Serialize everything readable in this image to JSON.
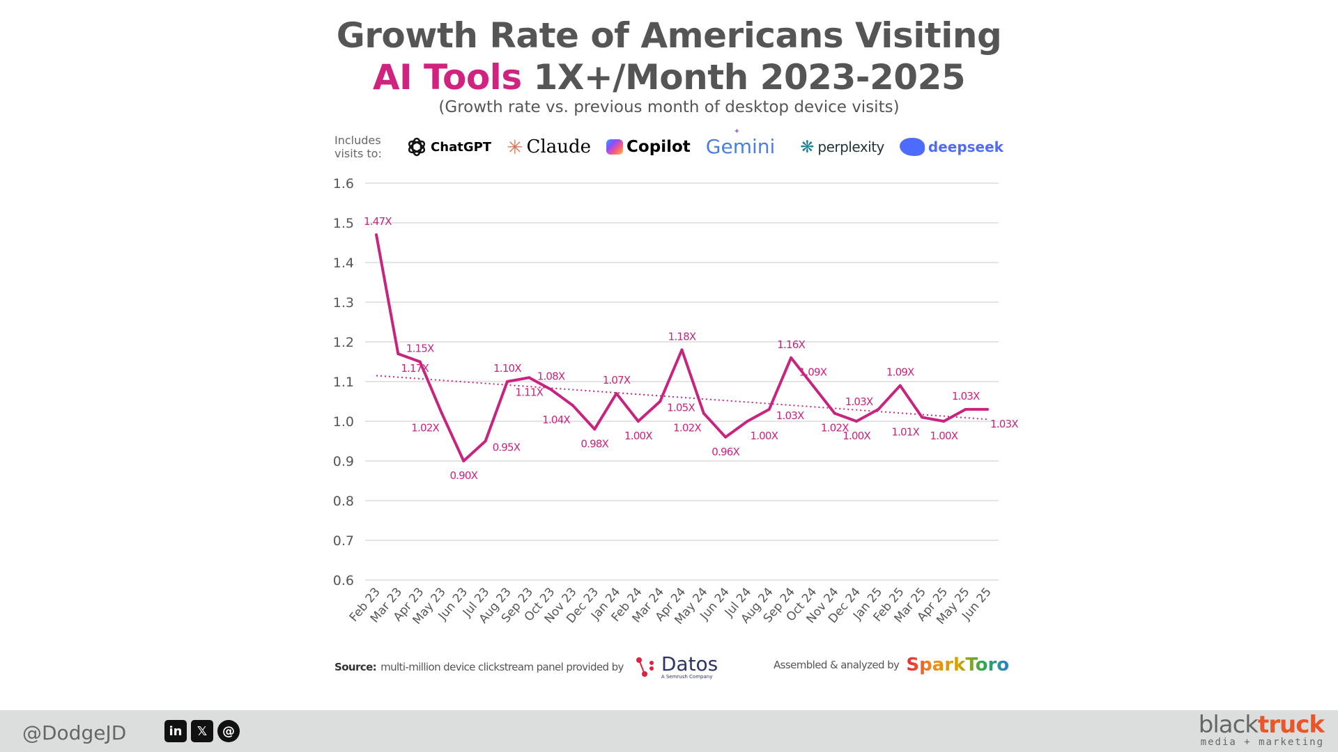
{
  "title": {
    "line1": "Growth Rate of Americans Visiting",
    "accent": "AI Tools",
    "line2_rest": " 1X+/Month 2023-2025"
  },
  "subtitle": "(Growth rate vs. previous month of desktop device visits)",
  "includes": {
    "label": "Includes visits to:",
    "tools": [
      {
        "name": "ChatGPT",
        "icon": "openai-icon",
        "color": "#111111"
      },
      {
        "name": "Claude",
        "icon": "claude-asterisk-icon",
        "color": "#111111",
        "icon_color": "#d97757"
      },
      {
        "name": "Copilot",
        "icon": "copilot-icon",
        "color": "#111111"
      },
      {
        "name": "Gemini",
        "icon": "gemini-sparkle-icon",
        "color": "#4a7fe0"
      },
      {
        "name": "perplexity",
        "icon": "perplexity-icon",
        "color": "#20343a",
        "icon_color": "#20808d"
      },
      {
        "name": "deepseek",
        "icon": "deepseek-whale-icon",
        "color": "#4d6bfe"
      }
    ]
  },
  "chart_data": {
    "type": "line",
    "categories": [
      "Feb 23",
      "Mar 23",
      "Apr 23",
      "May 23",
      "Jun 23",
      "Jul 23",
      "Aug 23",
      "Sep 23",
      "Oct 23",
      "Nov 23",
      "Dec 23",
      "Jan 24",
      "Feb 24",
      "Mar 24",
      "Apr 24",
      "May 24",
      "Jun 24",
      "Jul 24",
      "Aug 24",
      "Sep 24",
      "Oct 24",
      "Nov 24",
      "Dec 24",
      "Jan 25",
      "Feb 25",
      "Mar 25",
      "Apr 25",
      "May 25",
      "Jun 25"
    ],
    "values": [
      1.47,
      1.17,
      1.15,
      1.02,
      0.9,
      0.95,
      1.1,
      1.11,
      1.08,
      1.04,
      0.98,
      1.07,
      1.0,
      1.05,
      1.18,
      1.02,
      0.96,
      1.0,
      1.03,
      1.16,
      1.09,
      1.02,
      1.0,
      1.03,
      1.09,
      1.01,
      1.0,
      1.03,
      1.03
    ],
    "data_labels": [
      "1.47X",
      "1.17X",
      "1.15X",
      "1.02X",
      "0.90X",
      "0.95X",
      "1.10X",
      "1.11X",
      "1.08X",
      "1.04X",
      "0.98X",
      "1.07X",
      "1.00X",
      "1.05X",
      "1.18X",
      "1.02X",
      "0.96X",
      "1.00X",
      "1.03X",
      "1.16X",
      "1.09X",
      "1.02X",
      "1.00X",
      "1.03X",
      "1.09X",
      "1.01X",
      "1.00X",
      "1.03X",
      "1.03X"
    ],
    "trendline": {
      "type": "linear",
      "style": "dotted",
      "start": 1.115,
      "end": 1.005
    },
    "ylim": [
      0.6,
      1.6
    ],
    "yticks": [
      "0.6",
      "0.7",
      "0.8",
      "0.9",
      "1.0",
      "1.1",
      "1.2",
      "1.3",
      "1.4",
      "1.5",
      "1.6"
    ],
    "grid": true,
    "xlabel": "",
    "ylabel": "",
    "color": "#c8247f"
  },
  "footer": {
    "source_label": "Source:",
    "source_text": "multi-million device clickstream panel provided by",
    "datos": "Datos",
    "datos_sub": "A Semrush Company",
    "assembled": "Assembled & analyzed by",
    "sparktoro": "SparkToro"
  },
  "bottom_bar": {
    "handle": "@DodgeJD",
    "social": [
      {
        "icon": "linkedin-icon",
        "glyph": "in"
      },
      {
        "icon": "x-icon",
        "glyph": "𝕏"
      },
      {
        "icon": "threads-icon",
        "glyph": "@"
      }
    ],
    "brand_a": "black",
    "brand_b": "truck",
    "tagline": "media + marketing"
  }
}
